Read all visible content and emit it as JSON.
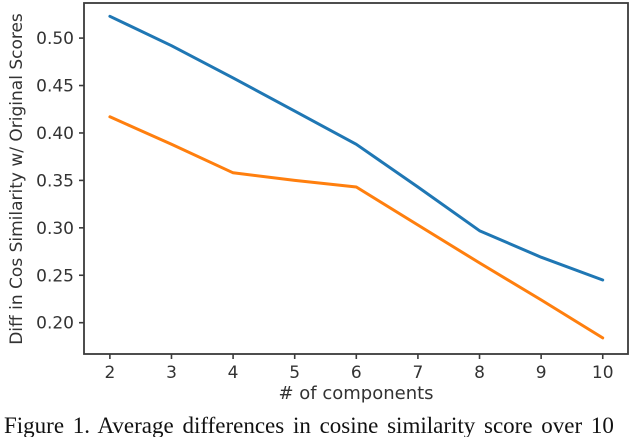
{
  "chart_data": {
    "type": "line",
    "x": [
      2,
      3,
      4,
      5,
      6,
      7,
      8,
      9,
      10
    ],
    "series": [
      {
        "name": "blue-series",
        "color": "#1f77b4",
        "values": [
          0.523,
          0.492,
          0.458,
          0.423,
          0.388,
          0.343,
          0.297,
          0.269,
          0.245
        ]
      },
      {
        "name": "orange-series",
        "color": "#ff7f0e",
        "values": [
          0.417,
          0.388,
          0.358,
          0.35,
          0.343,
          0.303,
          0.263,
          0.224,
          0.184
        ]
      }
    ],
    "title": "",
    "xlabel": "# of components",
    "ylabel": "Diff in Cos Similarity w/ Original Scores",
    "xticks": [
      2,
      3,
      4,
      5,
      6,
      7,
      8,
      9,
      10
    ],
    "yticks": [
      0.2,
      0.25,
      0.3,
      0.35,
      0.4,
      0.45,
      0.5
    ],
    "xlim": [
      1.58,
      10.41
    ],
    "ylim": [
      0.167,
      0.537
    ],
    "grid": false,
    "legend": "none",
    "axis_color": "#3b3b3b"
  },
  "caption": {
    "text": "Figure 1. Average differences in cosine similarity score over 10"
  }
}
